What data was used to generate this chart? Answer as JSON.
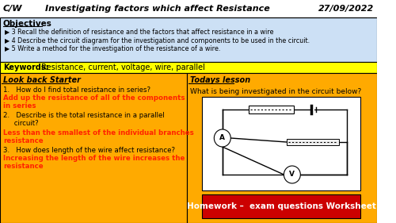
{
  "title_cw": "C/W",
  "title_main": "Investigating factors which affect Resistance",
  "title_date": "27/09/2022",
  "header_bg": "#ffffff",
  "objectives_bg": "#cce0f5",
  "keywords_bg": "#ffff00",
  "orange": "#ffaa00",
  "homework_bg": "#cc0000",
  "objectives_title": "Objectives",
  "objectives": [
    "3 Recall the definition of resistance and the factors that affect resistance in a wire",
    "4 Describe the circuit diagram for the investigation and components to be used in the circuit.",
    "5 Write a method for the investigation of the resistance of a wire."
  ],
  "keywords_label": "Keywords:",
  "keywords_text": " Resistance, current, voltage, wire, parallel",
  "left_header": "Look back Starter",
  "right_header": "Todays lesson",
  "q1": "1.   How do I find total resistance in series?",
  "a1": "Add up the resistance of all of the components\nin series",
  "q2": "2.   Describe is the total resistance in a parallel\n     circuit?",
  "a2": "Less than the smallest of the individual branches\nresistance",
  "q3": "3.   How does length of the wire affect resistance?",
  "a3": "Increasing the length of the wire increases the\nresistance",
  "right_q": "What is being investigated in the circuit below?",
  "homework_text": "Homework –  exam questions Worksheet",
  "answer_color": "#ff2200"
}
